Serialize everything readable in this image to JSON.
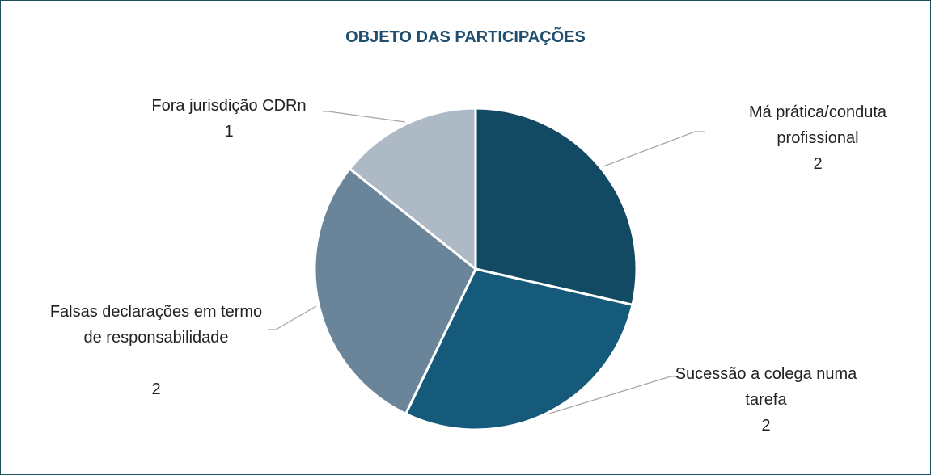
{
  "chart_data": {
    "type": "pie",
    "title": "OBJETO DAS PARTICIPAÇÕES",
    "categories": [
      "Má prática/conduta profissional",
      "Sucessão a colega numa tarefa",
      "Falsas declarações em termo de responsabilidade",
      "Fora jurisdição CDRn"
    ],
    "values": [
      2,
      2,
      2,
      1
    ],
    "colors": [
      "#124a63",
      "#155a7a",
      "#6a8599",
      "#adb9c4"
    ]
  }
}
